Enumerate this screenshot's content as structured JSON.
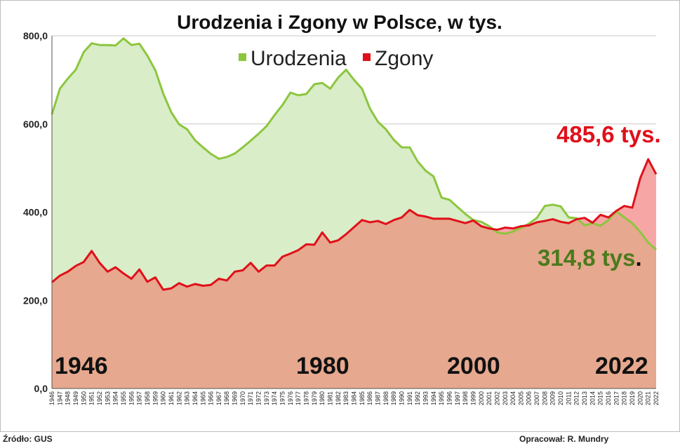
{
  "chart_data": {
    "type": "area",
    "title": "Urodzenia i Zgony w Polsce, w tys.",
    "ylim": [
      0,
      800
    ],
    "yticks": [
      "0,0",
      "200,0",
      "400,0",
      "600,0",
      "800,0"
    ],
    "ytick_values": [
      0,
      200,
      400,
      600,
      800
    ],
    "grid": "horizontal",
    "legend_position": "top-center",
    "x": [
      1946,
      1947,
      1948,
      1949,
      1950,
      1951,
      1952,
      1953,
      1954,
      1955,
      1956,
      1957,
      1958,
      1959,
      1960,
      1961,
      1962,
      1963,
      1964,
      1965,
      1966,
      1967,
      1968,
      1969,
      1970,
      1971,
      1972,
      1973,
      1974,
      1975,
      1976,
      1977,
      1978,
      1979,
      1980,
      1981,
      1982,
      1983,
      1984,
      1985,
      1986,
      1987,
      1988,
      1989,
      1990,
      1991,
      1992,
      1993,
      1994,
      1995,
      1996,
      1997,
      1998,
      1999,
      2000,
      2001,
      2002,
      2003,
      2004,
      2005,
      2006,
      2007,
      2008,
      2009,
      2010,
      2011,
      2012,
      2013,
      2014,
      2015,
      2016,
      2017,
      2018,
      2019,
      2020,
      2021,
      2022
    ],
    "series": [
      {
        "name": "Urodzenia",
        "color": "#8cc63f",
        "fill": "#d9edc8",
        "values": [
          622,
          680,
          703,
          723,
          763,
          783,
          779,
          779,
          778,
          794,
          779,
          782,
          755,
          722,
          669,
          627,
          599,
          588,
          563,
          547,
          532,
          521,
          525,
          533,
          547,
          562,
          578,
          595,
          620,
          643,
          671,
          665,
          668,
          690,
          693,
          680,
          705,
          723,
          700,
          680,
          635,
          605,
          588,
          564,
          547,
          547,
          515,
          494,
          481,
          433,
          428,
          412,
          396,
          382,
          378,
          368,
          354,
          351,
          356,
          364,
          374,
          387,
          414,
          417,
          413,
          388,
          386,
          370,
          375,
          369,
          382,
          402,
          388,
          375,
          355,
          331,
          315
        ]
      },
      {
        "name": "Zgony",
        "color": "#e0101a",
        "fill": "#f7a6a6",
        "values": [
          241,
          256,
          265,
          278,
          287,
          312,
          285,
          265,
          275,
          261,
          249,
          270,
          242,
          252,
          224,
          227,
          239,
          231,
          237,
          233,
          235,
          249,
          245,
          265,
          268,
          285,
          265,
          279,
          279,
          299,
          306,
          314,
          327,
          326,
          354,
          331,
          336,
          350,
          366,
          382,
          377,
          380,
          373,
          382,
          388,
          405,
          393,
          390,
          385,
          385,
          385,
          380,
          375,
          381,
          368,
          363,
          360,
          365,
          363,
          368,
          370,
          377,
          380,
          384,
          378,
          375,
          384,
          387,
          376,
          394,
          388,
          403,
          414,
          410,
          477,
          520,
          486
        ]
      }
    ],
    "annotations": [
      {
        "text": "485,6 tys.",
        "series": "Zgony"
      },
      {
        "text": "314,8 tys",
        "series": "Urodzenia"
      }
    ],
    "decade_labels": [
      "1946",
      "1980",
      "2000",
      "2022"
    ]
  },
  "footer": {
    "source": "Źródło: GUS",
    "author": "Opracował: R. Mundry"
  }
}
